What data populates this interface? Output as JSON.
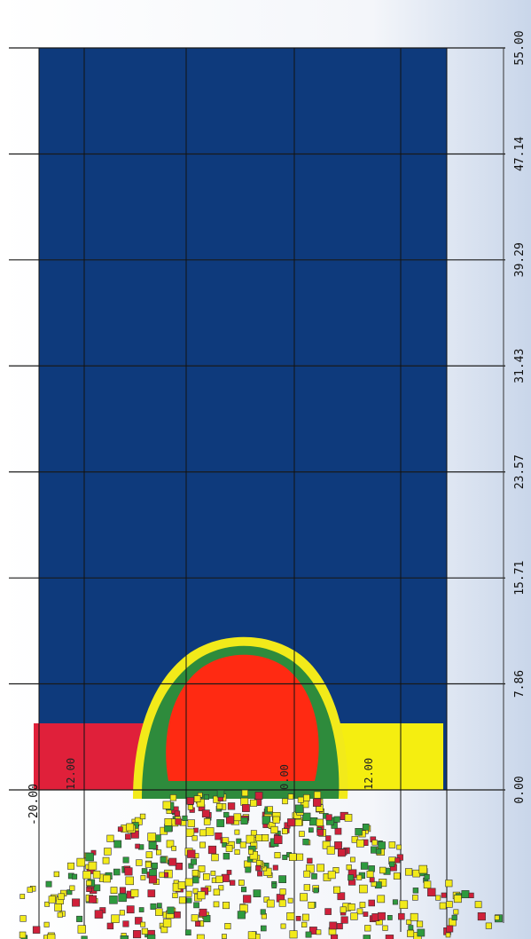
{
  "chart_data": {
    "type": "heatmap",
    "title": "",
    "xlabel": "",
    "ylabel": "",
    "y_axis_orientation": "vertical axis on right side, rotated labels",
    "y_ticks": [
      "0.00",
      "7.86",
      "15.71",
      "23.57",
      "31.43",
      "39.29",
      "47.14",
      "55.00"
    ],
    "y_tick_values": [
      0.0,
      7.86,
      15.71,
      23.57,
      31.43,
      39.29,
      47.14,
      55.0
    ],
    "ylim": [
      -20.0,
      55.0
    ],
    "y_min_label": "-20.00",
    "inner_labels": [
      "12.00",
      "0.00",
      "12.00"
    ],
    "grid": true,
    "colors": {
      "background_field": "#0e3a7c",
      "projectile_core": "#ff2a12",
      "rim": "#2e8b3c",
      "left_plate": "#e0203a",
      "right_plate": "#f5ee10",
      "debris_yellow": "#f2ea1a",
      "debris_green": "#2e9a3e",
      "debris_red": "#d0203a"
    }
  }
}
